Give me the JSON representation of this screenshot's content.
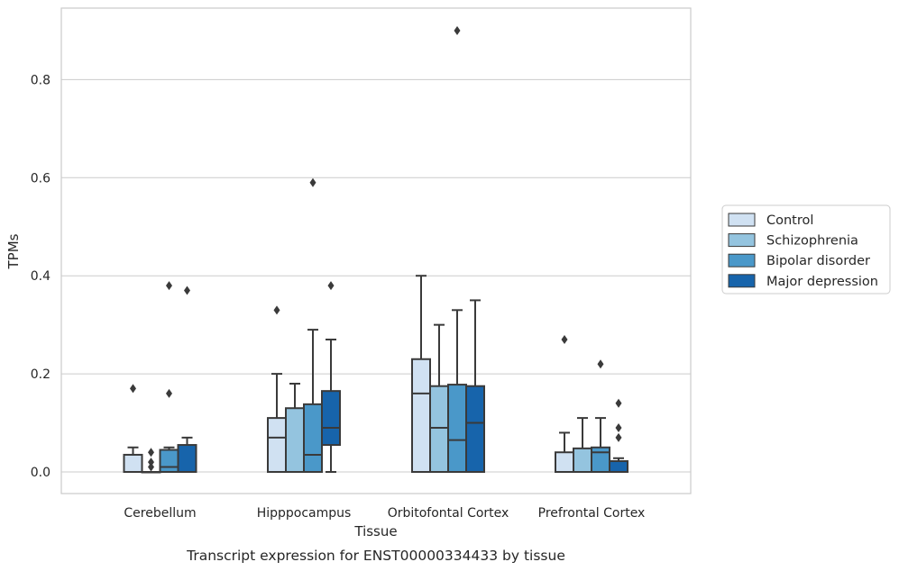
{
  "chart_data": {
    "type": "box",
    "xlabel": "Tissue",
    "ylabel": "TPMs",
    "caption": "Transcript expression for ENST00000334433 by tissue",
    "categories": [
      "Cerebellum",
      "Hipppocampus",
      "Orbitofontal Cortex",
      "Prefrontal Cortex"
    ],
    "y_ticks": [
      0.0,
      0.2,
      0.4,
      0.6,
      0.8
    ],
    "y_tick_labels": [
      "0.0",
      "0.2",
      "0.4",
      "0.6",
      "0.8"
    ],
    "ylim": [
      -0.045,
      0.945
    ],
    "grid": "horizontal",
    "legend_position": "right",
    "series": [
      {
        "name": "Control",
        "color": "#d0e1f2",
        "boxes": [
          {
            "min": 0.0,
            "q1": 0.0,
            "median": 0.0,
            "q3": 0.035,
            "max": 0.05,
            "outliers": [
              0.17
            ]
          },
          {
            "min": 0.0,
            "q1": 0.0,
            "median": 0.07,
            "q3": 0.11,
            "max": 0.2,
            "outliers": [
              0.33
            ]
          },
          {
            "min": 0.0,
            "q1": 0.0,
            "median": 0.16,
            "q3": 0.23,
            "max": 0.4,
            "outliers": []
          },
          {
            "min": 0.0,
            "q1": 0.0,
            "median": 0.0,
            "q3": 0.04,
            "max": 0.08,
            "outliers": [
              0.27
            ]
          }
        ]
      },
      {
        "name": "Schizophrenia",
        "color": "#94c4df",
        "boxes": [
          {
            "min": 0.0,
            "q1": 0.0,
            "median": 0.0,
            "q3": 0.0,
            "max": 0.0,
            "outliers": [
              0.04,
              0.02,
              0.01
            ]
          },
          {
            "min": 0.0,
            "q1": 0.0,
            "median": 0.0,
            "q3": 0.13,
            "max": 0.18,
            "outliers": []
          },
          {
            "min": 0.0,
            "q1": 0.0,
            "median": 0.09,
            "q3": 0.175,
            "max": 0.3,
            "outliers": []
          },
          {
            "min": 0.0,
            "q1": 0.0,
            "median": 0.0,
            "q3": 0.048,
            "max": 0.11,
            "outliers": []
          }
        ]
      },
      {
        "name": "Bipolar disorder",
        "color": "#4a98c9",
        "boxes": [
          {
            "min": 0.0,
            "q1": 0.0,
            "median": 0.01,
            "q3": 0.045,
            "max": 0.05,
            "outliers": [
              0.38,
              0.16
            ]
          },
          {
            "min": 0.0,
            "q1": 0.0,
            "median": 0.035,
            "q3": 0.138,
            "max": 0.29,
            "outliers": [
              0.59
            ]
          },
          {
            "min": 0.0,
            "q1": 0.0,
            "median": 0.065,
            "q3": 0.178,
            "max": 0.33,
            "outliers": [
              0.9
            ]
          },
          {
            "min": 0.0,
            "q1": 0.0,
            "median": 0.04,
            "q3": 0.05,
            "max": 0.11,
            "outliers": [
              0.22
            ]
          }
        ]
      },
      {
        "name": "Major depression",
        "color": "#1764ab",
        "boxes": [
          {
            "min": 0.0,
            "q1": 0.0,
            "median": 0.0,
            "q3": 0.055,
            "max": 0.07,
            "outliers": [
              0.37
            ]
          },
          {
            "min": 0.0,
            "q1": 0.055,
            "median": 0.09,
            "q3": 0.165,
            "max": 0.27,
            "outliers": [
              0.38
            ]
          },
          {
            "min": 0.0,
            "q1": 0.0,
            "median": 0.1,
            "q3": 0.175,
            "max": 0.35,
            "outliers": []
          },
          {
            "min": 0.0,
            "q1": 0.0,
            "median": 0.0,
            "q3": 0.022,
            "max": 0.028,
            "outliers": [
              0.14,
              0.09,
              0.07
            ]
          }
        ]
      }
    ]
  }
}
